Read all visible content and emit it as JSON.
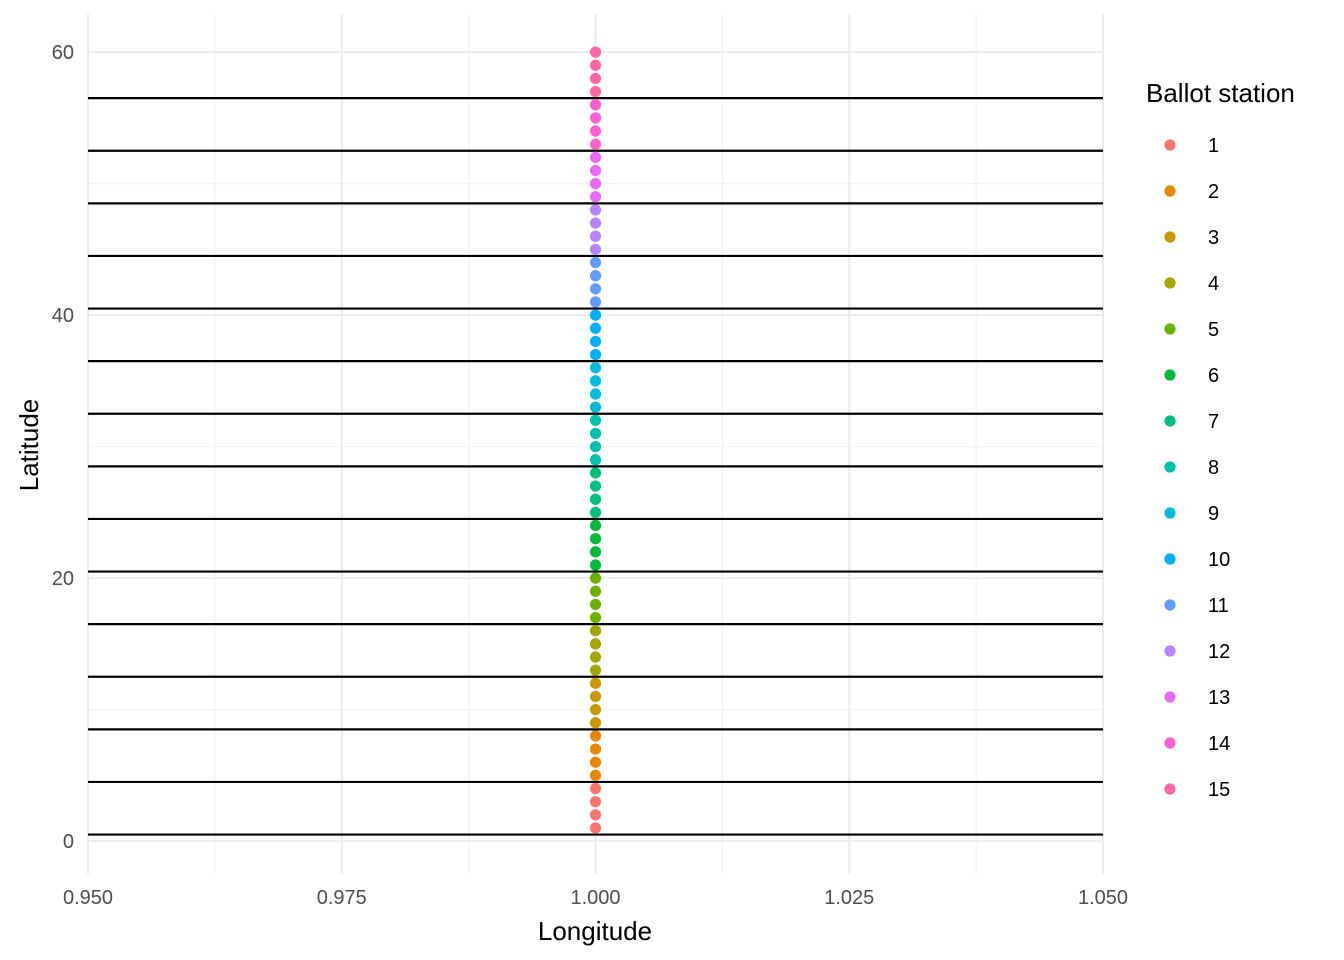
{
  "chart_data": {
    "type": "scatter",
    "xlabel": "Longitude",
    "ylabel": "Latitude",
    "xlim": [
      0.95,
      1.05
    ],
    "ylim": [
      -2.5,
      62.9
    ],
    "x_ticks": [
      0.95,
      0.975,
      1.0,
      1.025,
      1.05
    ],
    "x_tick_labels": [
      "0.950",
      "0.975",
      "1.000",
      "1.025",
      "1.050"
    ],
    "y_ticks": [
      0,
      20,
      40,
      60
    ],
    "y_tick_labels": [
      "0",
      "20",
      "40",
      "60"
    ],
    "grid": true,
    "legend": {
      "title": "Ballot station",
      "position": "right",
      "entries": [
        "1",
        "2",
        "3",
        "4",
        "5",
        "6",
        "7",
        "8",
        "9",
        "10",
        "11",
        "12",
        "13",
        "14",
        "15"
      ]
    },
    "colors": [
      "#F8766D",
      "#E58700",
      "#C99800",
      "#A3A500",
      "#6BB100",
      "#00BA38",
      "#00BF7D",
      "#00C0AF",
      "#00BCD8",
      "#00B0F6",
      "#619CFF",
      "#B983FF",
      "#E76BF3",
      "#FD61D1",
      "#FF67A4"
    ],
    "hlines": [
      0.5,
      4.5,
      8.5,
      12.5,
      16.5,
      20.5,
      24.5,
      28.5,
      32.5,
      36.5,
      40.5,
      44.5,
      48.5,
      52.5,
      56.5
    ],
    "hline_color": "#000000",
    "series": [
      {
        "name": "1",
        "x": [
          1,
          1,
          1,
          1
        ],
        "y": [
          1,
          2,
          3,
          4
        ]
      },
      {
        "name": "2",
        "x": [
          1,
          1,
          1,
          1
        ],
        "y": [
          5,
          6,
          7,
          8
        ]
      },
      {
        "name": "3",
        "x": [
          1,
          1,
          1,
          1
        ],
        "y": [
          9,
          10,
          11,
          12
        ]
      },
      {
        "name": "4",
        "x": [
          1,
          1,
          1,
          1
        ],
        "y": [
          13,
          14,
          15,
          16
        ]
      },
      {
        "name": "5",
        "x": [
          1,
          1,
          1,
          1
        ],
        "y": [
          17,
          18,
          19,
          20
        ]
      },
      {
        "name": "6",
        "x": [
          1,
          1,
          1,
          1
        ],
        "y": [
          21,
          22,
          23,
          24
        ]
      },
      {
        "name": "7",
        "x": [
          1,
          1,
          1,
          1
        ],
        "y": [
          25,
          26,
          27,
          28
        ]
      },
      {
        "name": "8",
        "x": [
          1,
          1,
          1,
          1
        ],
        "y": [
          29,
          30,
          31,
          32
        ]
      },
      {
        "name": "9",
        "x": [
          1,
          1,
          1,
          1
        ],
        "y": [
          33,
          34,
          35,
          36
        ]
      },
      {
        "name": "10",
        "x": [
          1,
          1,
          1,
          1
        ],
        "y": [
          37,
          38,
          39,
          40
        ]
      },
      {
        "name": "11",
        "x": [
          1,
          1,
          1,
          1
        ],
        "y": [
          41,
          42,
          43,
          44
        ]
      },
      {
        "name": "12",
        "x": [
          1,
          1,
          1,
          1
        ],
        "y": [
          45,
          46,
          47,
          48
        ]
      },
      {
        "name": "13",
        "x": [
          1,
          1,
          1,
          1
        ],
        "y": [
          49,
          50,
          51,
          52
        ]
      },
      {
        "name": "14",
        "x": [
          1,
          1,
          1,
          1
        ],
        "y": [
          53,
          54,
          55,
          56
        ]
      },
      {
        "name": "15",
        "x": [
          1,
          1,
          1,
          1
        ],
        "y": [
          57,
          58,
          59,
          60
        ]
      }
    ]
  }
}
